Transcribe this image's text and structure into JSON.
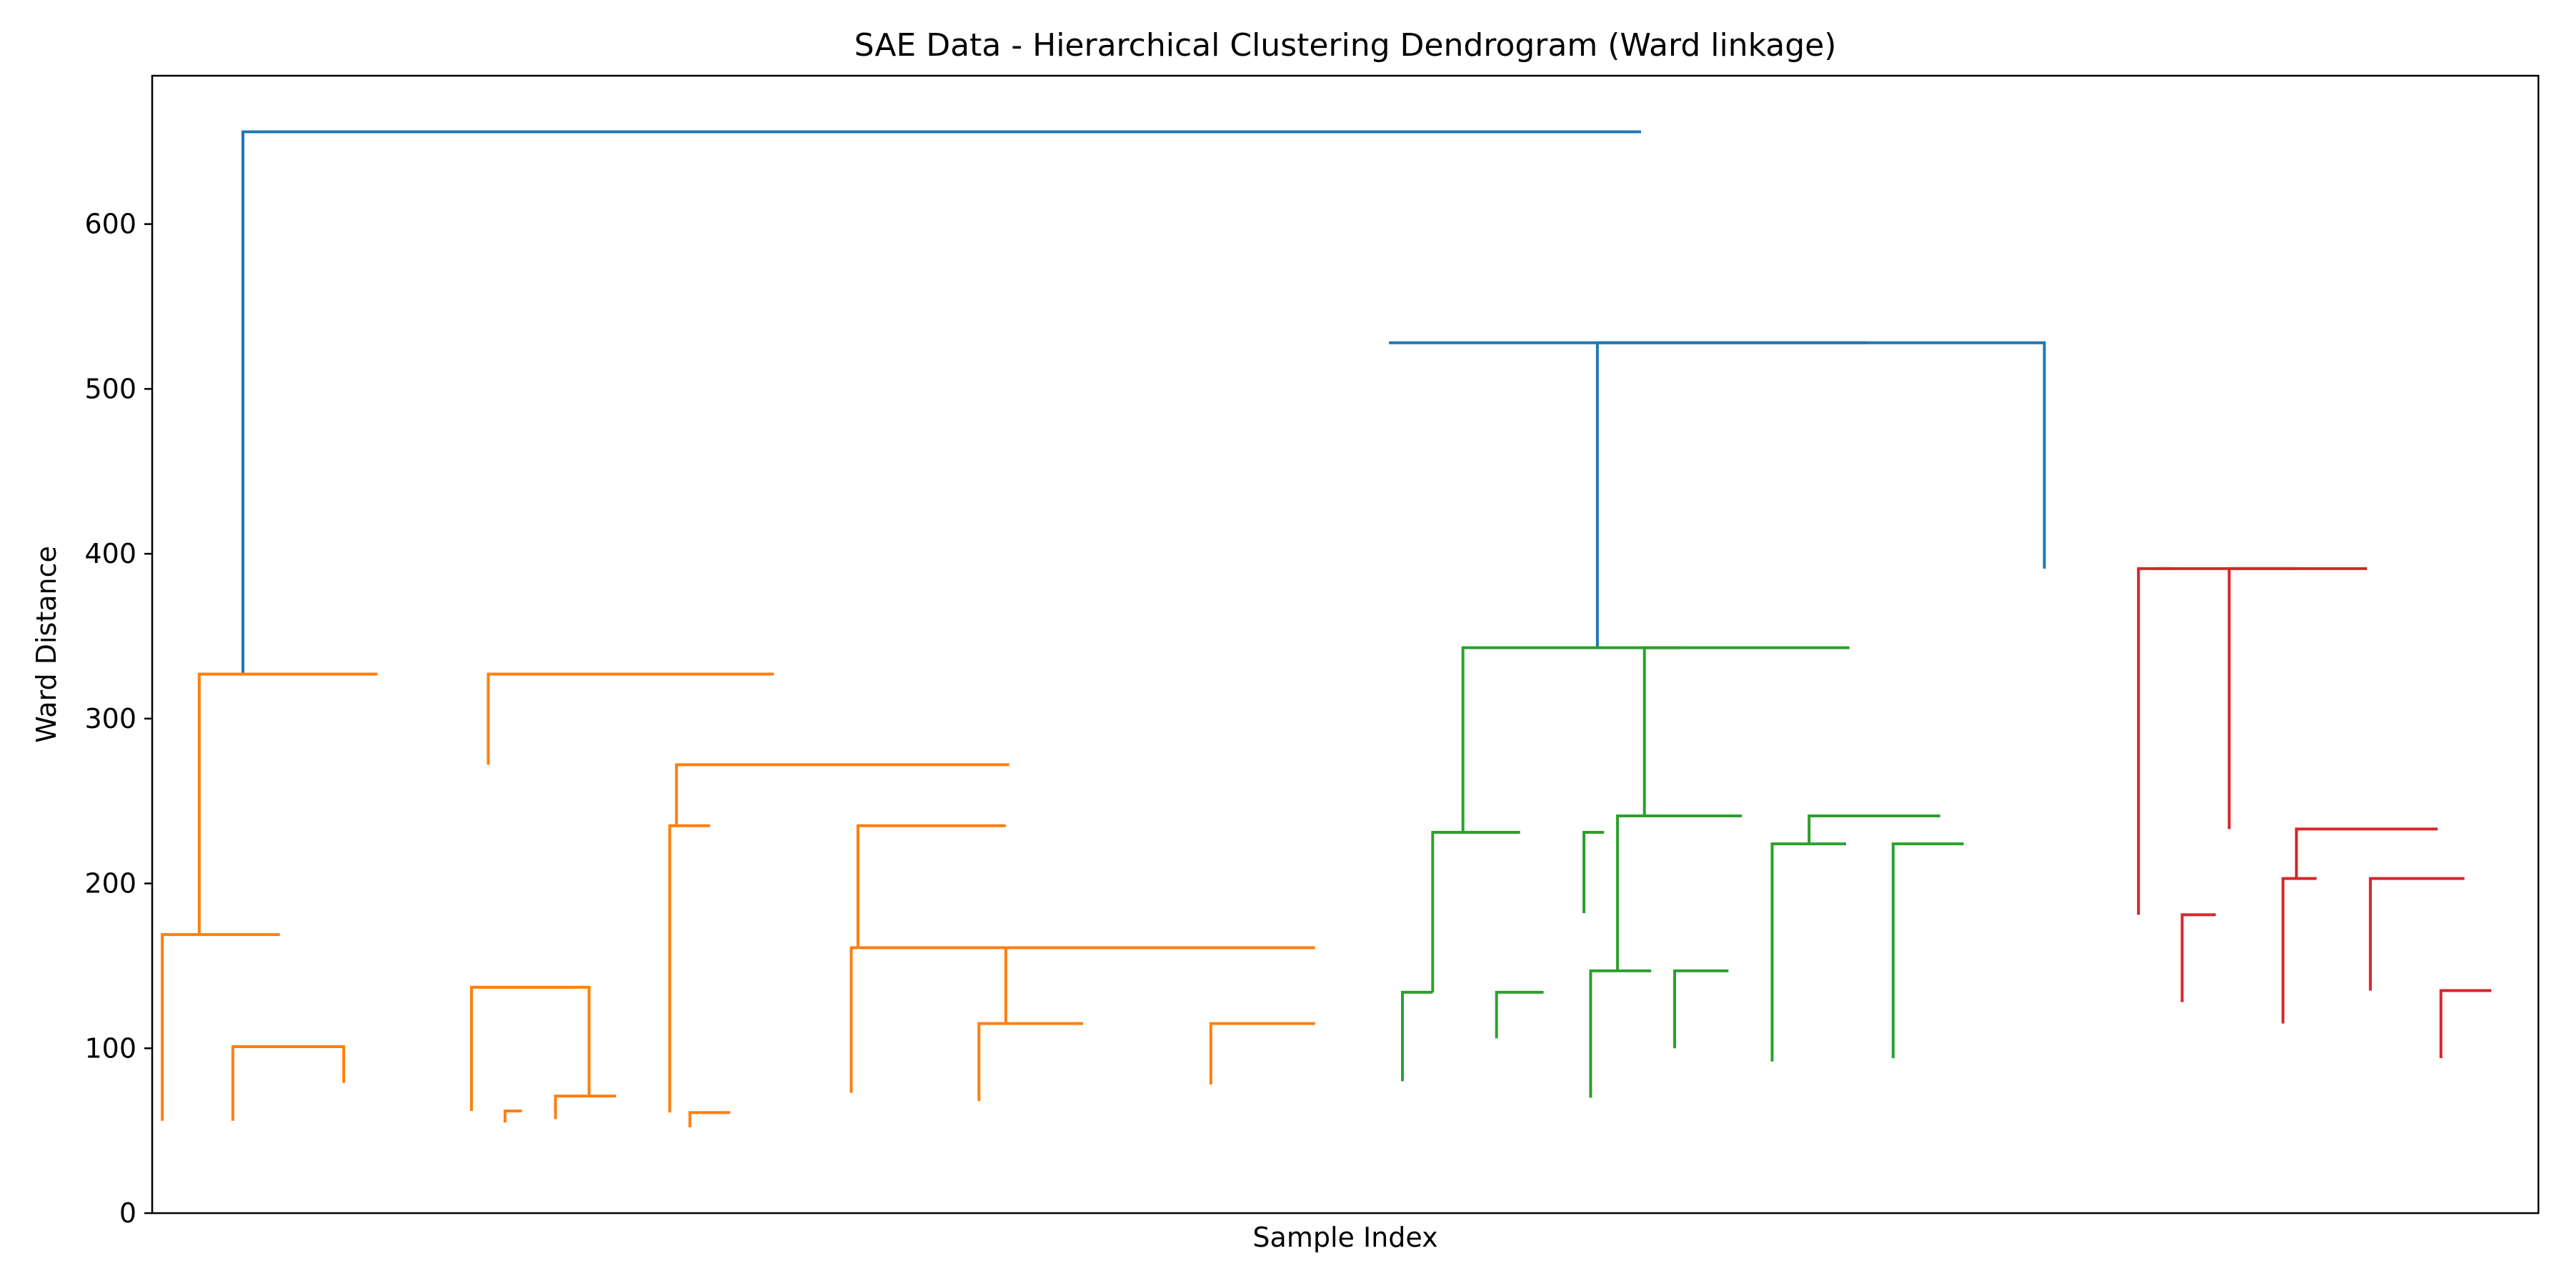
{
  "chart_data": {
    "type": "dendrogram",
    "title": "SAE Data - Hierarchical Clustering Dendrogram (Ward linkage)",
    "xlabel": "Sample Index",
    "ylabel": "Ward Distance",
    "ylim": [
      0,
      690
    ],
    "yticks": [
      0,
      100,
      200,
      300,
      400,
      500,
      600
    ],
    "grid": false,
    "legend": "none",
    "colors": {
      "root": "#1f77b4",
      "orange": "#ff7f0e",
      "green": "#2ca02c",
      "red": "#d62728"
    },
    "links": [
      {
        "x": [
          135,
          2215
        ],
        "y": [
          327,
          656
        ],
        "color": "root"
      },
      {
        "x": [
          2150,
          2550
        ],
        "y": [
          343,
          528
        ],
        "color": "root"
      },
      {
        "x": [
          1840,
          2815
        ],
        "y": [
          528,
          391
        ],
        "color": "root"
      },
      {
        "x": [
          70,
          335
        ],
        "y": [
          169,
          327
        ],
        "color": "orange"
      },
      {
        "x": [
          15,
          190
        ],
        "y": [
          56,
          169
        ],
        "color": "orange"
      },
      {
        "x": [
          120,
          255
        ],
        "y": [
          56,
          101
        ],
        "color": "orange"
      },
      {
        "x": [
          230,
          285
        ],
        "y": [
          101,
          79
        ],
        "color": "orange"
      },
      {
        "x": [
          500,
          925
        ],
        "y": [
          272,
          327
        ],
        "color": "orange"
      },
      {
        "x": [
          475,
          550
        ],
        "y": [
          62,
          137
        ],
        "color": "orange"
      },
      {
        "x": [
          525,
          550
        ],
        "y": [
          55,
          62
        ],
        "color": "orange"
      },
      {
        "x": [
          550,
          650
        ],
        "y": [
          137,
          71
        ],
        "color": "orange"
      },
      {
        "x": [
          600,
          690
        ],
        "y": [
          57,
          71
        ],
        "color": "orange"
      },
      {
        "x": [
          780,
          1275
        ],
        "y": [
          235,
          272
        ],
        "color": "orange"
      },
      {
        "x": [
          770,
          830
        ],
        "y": [
          61,
          235
        ],
        "color": "orange"
      },
      {
        "x": [
          800,
          860
        ],
        "y": [
          52,
          61
        ],
        "color": "orange"
      },
      {
        "x": [
          1040,
          1500
        ],
        "y": [
          73,
          161
        ],
        "color": "orange"
      },
      {
        "x": [
          1050,
          1270
        ],
        "y": [
          161,
          235
        ],
        "color": "orange"
      },
      {
        "x": [
          1270,
          1730
        ],
        "y": [
          115,
          161
        ],
        "color": "orange"
      },
      {
        "x": [
          1230,
          1385
        ],
        "y": [
          68,
          115
        ],
        "color": "orange"
      },
      {
        "x": [
          1575,
          1730
        ],
        "y": [
          78,
          115
        ],
        "color": "orange"
      },
      {
        "x": [
          1950,
          2275
        ],
        "y": [
          231,
          343
        ],
        "color": "green"
      },
      {
        "x": [
          1905,
          2035
        ],
        "y": [
          134,
          231
        ],
        "color": "green"
      },
      {
        "x": [
          1860,
          1905
        ],
        "y": [
          80,
          134
        ],
        "color": "green"
      },
      {
        "x": [
          2000,
          2070
        ],
        "y": [
          106,
          134
        ],
        "color": "green"
      },
      {
        "x": [
          2130,
          2160
        ],
        "y": [
          182,
          231
        ],
        "color": "green"
      },
      {
        "x": [
          2220,
          2525
        ],
        "y": [
          241,
          343
        ],
        "color": "green"
      },
      {
        "x": [
          2180,
          2365
        ],
        "y": [
          147,
          241
        ],
        "color": "green"
      },
      {
        "x": [
          2140,
          2230
        ],
        "y": [
          70,
          147
        ],
        "color": "green"
      },
      {
        "x": [
          2265,
          2345
        ],
        "y": [
          100,
          147
        ],
        "color": "green"
      },
      {
        "x": [
          2465,
          2660
        ],
        "y": [
          224,
          241
        ],
        "color": "green"
      },
      {
        "x": [
          2410,
          2520
        ],
        "y": [
          92,
          224
        ],
        "color": "green"
      },
      {
        "x": [
          2590,
          2695
        ],
        "y": [
          94,
          224
        ],
        "color": "green"
      },
      {
        "x": [
          2980,
          3190
        ],
        "y": [
          391,
          391
        ],
        "color": "red"
      },
      {
        "x": [
          2955,
          3005
        ],
        "y": [
          181,
          391
        ],
        "color": "red"
      },
      {
        "x": [
          3090,
          3295
        ],
        "y": [
          233,
          391
        ],
        "color": "red"
      },
      {
        "x": [
          3020,
          3070
        ],
        "y": [
          128,
          181
        ],
        "color": "red"
      },
      {
        "x": [
          3190,
          3400
        ],
        "y": [
          203,
          233
        ],
        "color": "red"
      },
      {
        "x": [
          3170,
          3220
        ],
        "y": [
          115,
          203
        ],
        "color": "red"
      },
      {
        "x": [
          3300,
          3440
        ],
        "y": [
          135,
          203
        ],
        "color": "red"
      },
      {
        "x": [
          3405,
          3480
        ],
        "y": [
          94,
          135
        ],
        "color": "red"
      }
    ],
    "leaf_range": [
      0,
      3550
    ]
  }
}
